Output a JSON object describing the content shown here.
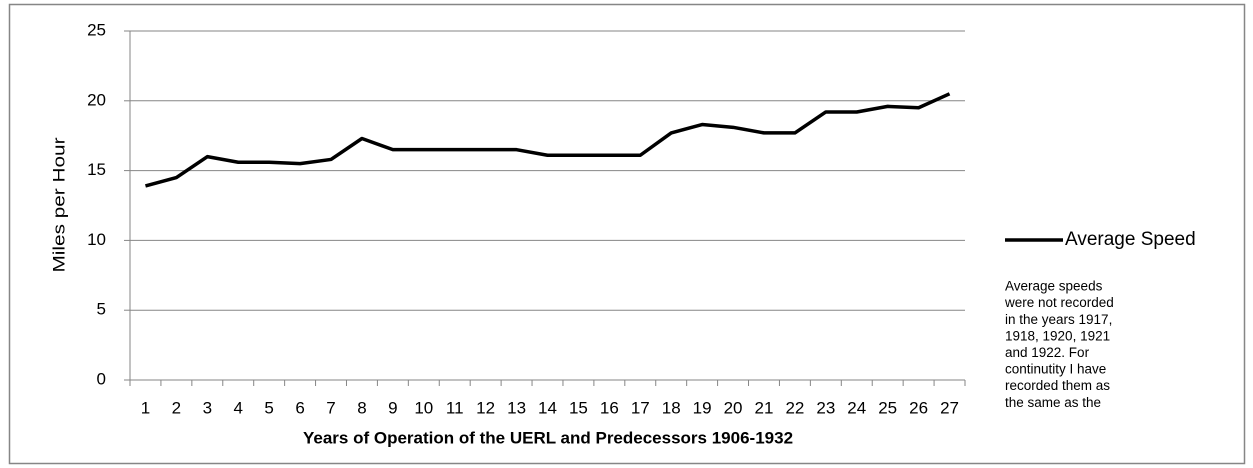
{
  "chart_data": {
    "type": "line",
    "x_label": "Years of Operation of the UERL and Predecessors 1906-1932",
    "y_label": "Miles per Hour",
    "categories": [
      "1",
      "2",
      "3",
      "4",
      "5",
      "6",
      "7",
      "8",
      "9",
      "10",
      "11",
      "12",
      "13",
      "14",
      "15",
      "16",
      "17",
      "18",
      "19",
      "20",
      "21",
      "22",
      "23",
      "24",
      "25",
      "26",
      "27"
    ],
    "series": [
      {
        "name": "Average Speed",
        "color": "#000000",
        "values": [
          13.9,
          14.5,
          16.0,
          15.6,
          15.6,
          15.5,
          15.8,
          17.3,
          16.5,
          16.5,
          16.5,
          16.5,
          16.5,
          16.1,
          16.1,
          16.1,
          16.1,
          17.7,
          18.3,
          18.1,
          17.7,
          17.7,
          19.2,
          19.2,
          19.6,
          19.5,
          20.5
        ]
      }
    ],
    "ylim": [
      0,
      25
    ],
    "yticks": [
      0,
      5,
      10,
      15,
      20,
      25
    ],
    "grid": true,
    "legend": "right",
    "annotation": [
      "Average speeds",
      "were not recorded",
      "in the years 1917,",
      "1918, 1920, 1921",
      "and 1922. For",
      "continutity I have",
      "recorded them as",
      "the same as the"
    ]
  }
}
